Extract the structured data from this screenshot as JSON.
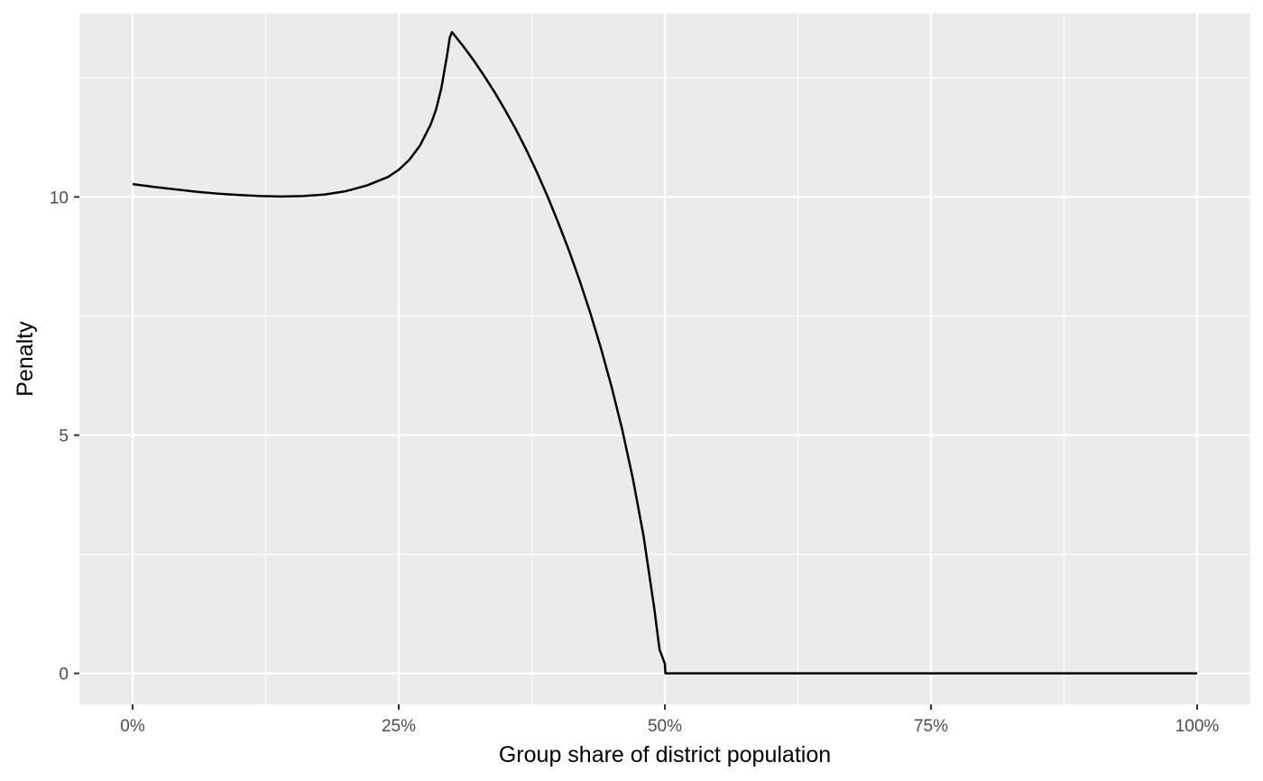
{
  "chart_data": {
    "type": "line",
    "title": "",
    "xlabel": "Group share of district population",
    "ylabel": "Penalty",
    "xlim": [
      -0.05,
      1.05
    ],
    "ylim": [
      -0.65,
      13.85
    ],
    "x_ticks": [
      0,
      0.25,
      0.5,
      0.75,
      1.0
    ],
    "x_tick_labels": [
      "0%",
      "25%",
      "50%",
      "75%",
      "100%"
    ],
    "y_ticks": [
      0,
      5,
      10
    ],
    "y_tick_labels": [
      "0",
      "5",
      "10"
    ],
    "grid": true,
    "colors": {
      "panel_background": "#ebebeb",
      "grid": "#ffffff",
      "line": "#000000",
      "tick": "#333333",
      "tick_label": "#4d4d4d"
    },
    "series": [
      {
        "x": [
          0,
          0.02,
          0.04,
          0.06,
          0.08,
          0.1,
          0.12,
          0.14,
          0.16,
          0.18,
          0.2,
          0.22,
          0.24,
          0.25,
          0.26,
          0.27,
          0.28,
          0.285,
          0.29,
          0.295,
          0.298,
          0.3,
          0.31,
          0.32,
          0.33,
          0.34,
          0.35,
          0.36,
          0.37,
          0.38,
          0.39,
          0.4,
          0.41,
          0.42,
          0.43,
          0.44,
          0.45,
          0.46,
          0.47,
          0.48,
          0.49,
          0.495,
          0.5,
          0.5005,
          0.55,
          0.6,
          0.7,
          0.8,
          0.9,
          1.0
        ],
        "y": [
          10.27,
          10.21,
          10.16,
          10.11,
          10.07,
          10.04,
          10.02,
          10.01,
          10.02,
          10.05,
          10.12,
          10.24,
          10.42,
          10.57,
          10.78,
          11.08,
          11.52,
          11.83,
          12.28,
          12.92,
          13.35,
          13.46,
          13.18,
          12.88,
          12.55,
          12.2,
          11.82,
          11.42,
          10.98,
          10.51,
          10.0,
          9.45,
          8.87,
          8.24,
          7.56,
          6.82,
          6.01,
          5.11,
          4.08,
          2.88,
          1.37,
          0.5,
          0.2,
          0,
          0,
          0,
          0,
          0,
          0,
          0
        ]
      }
    ]
  }
}
